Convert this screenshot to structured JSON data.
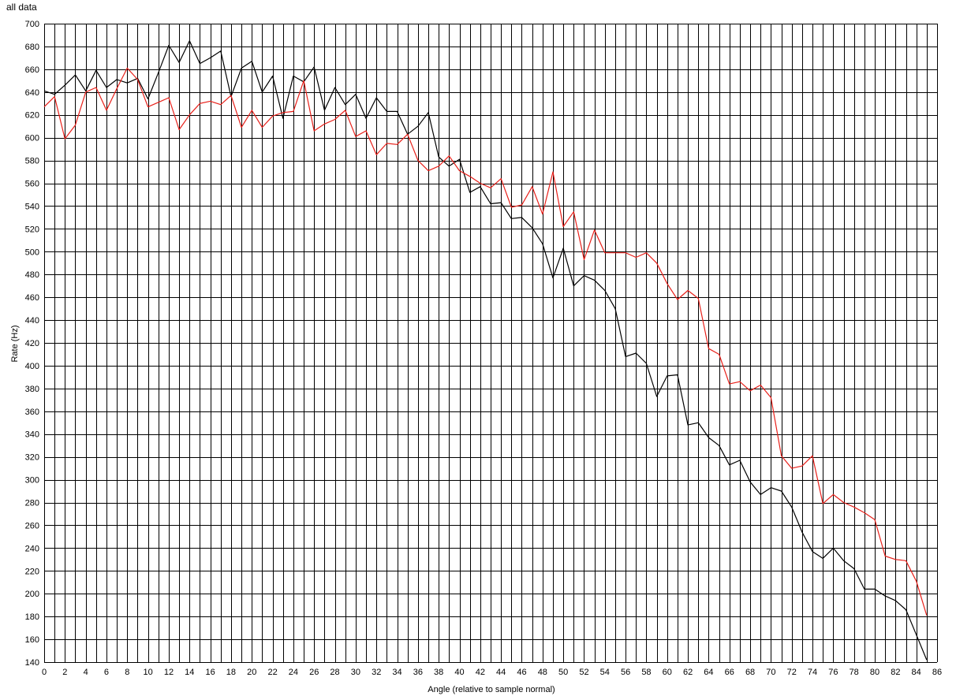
{
  "chart_data": {
    "type": "line",
    "title": "all data",
    "xlabel": "Angle (relative to sample normal)",
    "ylabel": "Rate (Hz)",
    "xlim": [
      0,
      86
    ],
    "ylim": [
      140,
      700
    ],
    "x_ticks": [
      0,
      2,
      4,
      6,
      8,
      10,
      12,
      14,
      16,
      18,
      20,
      22,
      24,
      26,
      28,
      30,
      32,
      34,
      36,
      38,
      40,
      42,
      44,
      46,
      48,
      50,
      52,
      54,
      56,
      58,
      60,
      62,
      64,
      66,
      68,
      70,
      72,
      74,
      76,
      78,
      80,
      82,
      84,
      86
    ],
    "y_ticks": [
      140,
      160,
      180,
      200,
      220,
      240,
      260,
      280,
      300,
      320,
      340,
      360,
      380,
      400,
      420,
      440,
      460,
      480,
      500,
      520,
      540,
      560,
      580,
      600,
      620,
      640,
      660,
      680,
      700
    ],
    "grid": true,
    "x": [
      0,
      1,
      2,
      3,
      4,
      5,
      6,
      7,
      8,
      9,
      10,
      11,
      12,
      13,
      14,
      15,
      16,
      17,
      18,
      19,
      20,
      21,
      22,
      23,
      24,
      25,
      26,
      27,
      28,
      29,
      30,
      31,
      32,
      33,
      34,
      35,
      36,
      37,
      38,
      39,
      40,
      41,
      42,
      43,
      44,
      45,
      46,
      47,
      48,
      49,
      50,
      51,
      52,
      53,
      54,
      55,
      56,
      57,
      58,
      59,
      60,
      61,
      62,
      63,
      64,
      65,
      66,
      67,
      68,
      69,
      70,
      71,
      72,
      73,
      74,
      75,
      76,
      77,
      78,
      79,
      80,
      81,
      82,
      83,
      84,
      85
    ],
    "series": [
      {
        "color": "#000000",
        "values": [
          641,
          638,
          646,
          655,
          641,
          659,
          644,
          651,
          648,
          652,
          634,
          657,
          681,
          666,
          685,
          665,
          670,
          676,
          636,
          661,
          667,
          640,
          654,
          617,
          654,
          649,
          662,
          624,
          644,
          629,
          638,
          617,
          635,
          623,
          623,
          603,
          610,
          622,
          583,
          575,
          581,
          552,
          557,
          542,
          543,
          529,
          530,
          521,
          507,
          477,
          503,
          470,
          479,
          475,
          466,
          450,
          408,
          411,
          402,
          373,
          391,
          392,
          348,
          350,
          337,
          330,
          313,
          317,
          298,
          287,
          293,
          290,
          276,
          254,
          237,
          231,
          240,
          229,
          222,
          204,
          204,
          198,
          194,
          186,
          164,
          142
        ]
      },
      {
        "color": "#e8201a",
        "values": [
          627,
          636,
          599,
          611,
          640,
          644,
          624,
          643,
          661,
          651,
          627,
          631,
          635,
          607,
          620,
          630,
          632,
          629,
          637,
          609,
          624,
          609,
          619,
          622,
          623,
          650,
          606,
          612,
          616,
          624,
          601,
          606,
          585,
          595,
          594,
          603,
          580,
          571,
          575,
          584,
          571,
          566,
          560,
          556,
          564,
          539,
          541,
          557,
          533,
          570,
          522,
          535,
          493,
          519,
          499,
          499,
          499,
          495,
          499,
          490,
          472,
          458,
          466,
          459,
          415,
          410,
          384,
          386,
          378,
          383,
          372,
          321,
          310,
          312,
          321,
          279,
          287,
          280,
          276,
          271,
          265,
          233,
          230,
          229,
          211,
          181
        ]
      }
    ]
  }
}
